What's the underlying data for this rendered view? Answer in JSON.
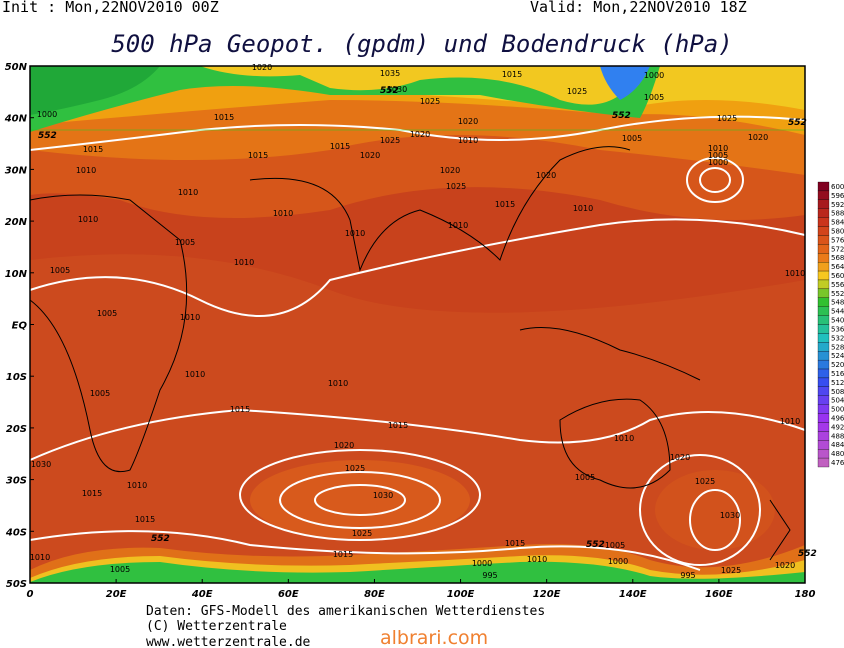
{
  "header": {
    "init": "Init : Mon,22NOV2010 00Z",
    "valid": "Valid: Mon,22NOV2010 18Z",
    "title": "500 hPa Geopot. (gpdm) und Bodendruck (hPa)"
  },
  "map": {
    "lat_labels": [
      "50N",
      "40N",
      "30N",
      "20N",
      "10N",
      "EQ",
      "10S",
      "20S",
      "30S",
      "40S",
      "50S"
    ],
    "lon_labels": [
      "0",
      "20E",
      "40E",
      "60E",
      "80E",
      "100E",
      "120E",
      "140E",
      "160E",
      "180"
    ],
    "height_labels": [
      "552",
      "552",
      "552",
      "552",
      "552",
      "552",
      "552"
    ],
    "isobar_labels": [
      "1020",
      "1035",
      "1015",
      "1000",
      "1030",
      "1025",
      "1025",
      "1005",
      "1000",
      "1015",
      "1025",
      "1020",
      "1020",
      "1010",
      "1015",
      "1015",
      "1020",
      "1015",
      "1025",
      "1020",
      "1005",
      "1010",
      "1005",
      "1000",
      "1010",
      "1020",
      "1020",
      "1025",
      "1010",
      "1015",
      "1010",
      "1010",
      "1010",
      "1010",
      "1010",
      "1005",
      "1010",
      "1005",
      "1010",
      "1005",
      "1010",
      "1010",
      "1010",
      "1005",
      "1015",
      "1015",
      "1010",
      "1010",
      "1020",
      "1020",
      "1005",
      "1025",
      "1025",
      "1030",
      "1010",
      "1030",
      "1015",
      "1030",
      "1015",
      "1025",
      "1015",
      "1005",
      "1015",
      "1010",
      "1005",
      "1000",
      "1010",
      "995",
      "1000",
      "995",
      "1025",
      "1020"
    ]
  },
  "colorbar": {
    "levels": [
      600,
      596,
      592,
      588,
      584,
      580,
      576,
      572,
      568,
      564,
      560,
      556,
      552,
      548,
      544,
      540,
      536,
      532,
      528,
      524,
      520,
      516,
      512,
      508,
      504,
      500,
      496,
      492,
      488,
      484,
      480,
      476
    ]
  },
  "footer": {
    "source": "Daten: GFS-Modell des amerikanischen Wetterdienstes",
    "copyright": "(C) Wetterzentrale",
    "url": "www.wetterzentrale.de",
    "watermark": "albrari.com"
  }
}
